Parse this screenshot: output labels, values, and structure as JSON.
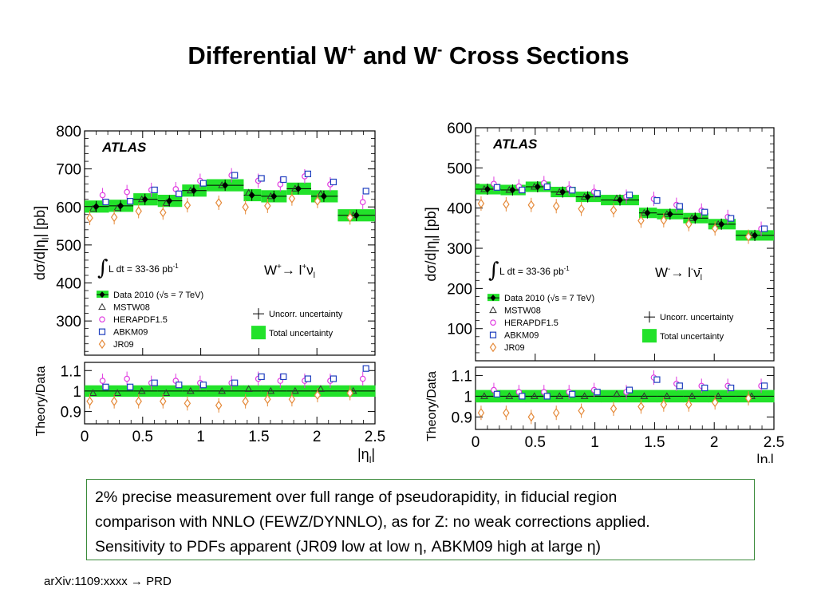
{
  "title": {
    "prefix": "Differential W",
    "sup1": "+",
    "mid": " and W",
    "sup2": "-",
    "suffix": " Cross Sections"
  },
  "colors": {
    "band": "#22e22a",
    "data": "#000000",
    "mstw": "#333333",
    "hera": "#e03ce0",
    "abkm": "#1f3fbf",
    "jr": "#e58a3a",
    "box_border": "#3a8a3a"
  },
  "chart_data": [
    {
      "type": "scatter",
      "brand": "ATLAS",
      "channel": {
        "main": "W",
        "sup": "+",
        "arrow": "→ l",
        "sup2": "+",
        "sym": "ν",
        "sub": "l"
      },
      "lumi": "L dt = 33-36 pb",
      "lumi_sup": "-1",
      "ylabel": "dσ/d|η",
      "ylabel_sub": "l",
      "ylabel_end": "| [pb]",
      "ratio_ylabel": "Theory/Data",
      "xlabel": "|η",
      "xlabel_sub": "l",
      "xlabel_end": "|",
      "ylim": [
        210,
        800
      ],
      "yticks": [
        "800",
        "700",
        "600",
        "500",
        "400",
        "300"
      ],
      "ratio_ylim": [
        0.84,
        1.14
      ],
      "ratio_yticks": [
        "1.1",
        "1",
        "0.9"
      ],
      "xlim": [
        0,
        2.5
      ],
      "xticks": [
        "0",
        "0.5",
        "1",
        "1.5",
        "2",
        "2.5"
      ],
      "bins": [
        [
          0,
          0.21
        ],
        [
          0.21,
          0.42
        ],
        [
          0.42,
          0.63
        ],
        [
          0.63,
          0.84
        ],
        [
          0.84,
          1.05
        ],
        [
          1.05,
          1.37
        ],
        [
          1.37,
          1.52
        ],
        [
          1.52,
          1.74
        ],
        [
          1.74,
          1.95
        ],
        [
          1.95,
          2.18
        ],
        [
          2.18,
          2.5
        ]
      ],
      "x": [
        0.1,
        0.31,
        0.52,
        0.73,
        0.94,
        1.21,
        1.44,
        1.63,
        1.84,
        2.06,
        2.34
      ],
      "legend": {
        "data": "Data 2010 (√s = 7 TeV)",
        "mstw": "MSTW08",
        "hera": "HERAPDF1.5",
        "abkm": "ABKM09",
        "jr": "JR09",
        "uncorr": "Uncorr. uncertainty",
        "total": "Total uncertainty"
      },
      "data": [
        601,
        603,
        620,
        616,
        643,
        657,
        631,
        628,
        648,
        628,
        578
      ],
      "band_half": [
        16,
        16,
        16,
        16,
        16,
        16,
        16,
        16,
        16,
        16,
        16
      ],
      "ratio_band_half": 0.028,
      "mstw": [
        0.99,
        0.99,
        1.0,
        0.99,
        1.0,
        1.0,
        1.01,
        1.0,
        1.0,
        1.01,
        1.0
      ],
      "hera": [
        1.05,
        1.06,
        1.04,
        1.05,
        1.04,
        1.04,
        1.06,
        1.05,
        1.05,
        1.05,
        1.06
      ],
      "abkm": [
        1.02,
        1.02,
        1.04,
        1.03,
        1.03,
        1.04,
        1.07,
        1.07,
        1.06,
        1.06,
        1.11
      ],
      "jr": [
        0.95,
        0.95,
        0.95,
        0.95,
        0.94,
        0.93,
        0.95,
        0.96,
        0.96,
        0.98,
        0.99
      ]
    },
    {
      "type": "scatter",
      "brand": "ATLAS",
      "channel": {
        "main": "W",
        "sup": "-",
        "arrow": "→ l",
        "sup2": "-",
        "sym": "ν̄",
        "sub": "l"
      },
      "lumi": "L dt = 33-36 pb",
      "lumi_sup": "-1",
      "ylabel": "dσ/d|η",
      "ylabel_sub": "l",
      "ylabel_end": "| [pb]",
      "ratio_ylabel": "Theory/Data",
      "xlabel": "|η",
      "xlabel_sub": "l",
      "xlabel_end": "|",
      "ylim": [
        20,
        600
      ],
      "yticks": [
        "600",
        "500",
        "400",
        "300",
        "200",
        "100"
      ],
      "ratio_ylim": [
        0.84,
        1.14
      ],
      "ratio_yticks": [
        "1.1",
        "1",
        "0.9"
      ],
      "xlim": [
        0,
        2.5
      ],
      "xticks": [
        "0",
        "0.5",
        "1",
        "1.5",
        "2",
        "2.5"
      ],
      "bins": [
        [
          0,
          0.21
        ],
        [
          0.21,
          0.42
        ],
        [
          0.42,
          0.63
        ],
        [
          0.63,
          0.84
        ],
        [
          0.84,
          1.05
        ],
        [
          1.05,
          1.37
        ],
        [
          1.37,
          1.52
        ],
        [
          1.52,
          1.74
        ],
        [
          1.74,
          1.95
        ],
        [
          1.95,
          2.18
        ],
        [
          2.18,
          2.5
        ]
      ],
      "x": [
        0.1,
        0.31,
        0.52,
        0.73,
        0.94,
        1.21,
        1.44,
        1.63,
        1.84,
        2.06,
        2.34
      ],
      "legend": {
        "data": "Data 2010 (√s = 7 TeV)",
        "mstw": "MSTW08",
        "hera": "HERAPDF1.5",
        "abkm": "ABKM09",
        "jr": "JR09",
        "uncorr": "Uncorr. uncertainty",
        "total": "Total uncertainty"
      },
      "data": [
        447,
        445,
        453,
        440,
        428,
        420,
        388,
        385,
        375,
        360,
        332
      ],
      "band_half": [
        13,
        13,
        13,
        13,
        13,
        13,
        13,
        13,
        13,
        13,
        13
      ],
      "ratio_band_half": 0.03,
      "mstw": [
        1.0,
        1.0,
        1.0,
        1.0,
        1.0,
        1.01,
        1.0,
        1.0,
        1.0,
        1.0,
        1.0
      ],
      "hera": [
        1.03,
        1.02,
        1.02,
        1.02,
        1.03,
        1.02,
        1.09,
        1.06,
        1.05,
        1.05,
        1.05
      ],
      "abkm": [
        1.01,
        1.0,
        1.0,
        1.01,
        1.02,
        1.03,
        1.08,
        1.05,
        1.04,
        1.04,
        1.05
      ],
      "jr": [
        0.92,
        0.92,
        0.9,
        0.92,
        0.93,
        0.94,
        0.95,
        0.96,
        0.96,
        0.97,
        0.99
      ]
    }
  ],
  "summary": [
    "2% precise measurement over full range of pseudorapidity, in fiducial region",
    "comparison with NNLO (FEWZ/DYNNLO), as for Z: no weak corrections applied.",
    "Sensitivity to PDFs apparent (JR09 low at low η, ABKM09 high at large η)"
  ],
  "footnote": "arXiv:1109:xxxx → PRD"
}
